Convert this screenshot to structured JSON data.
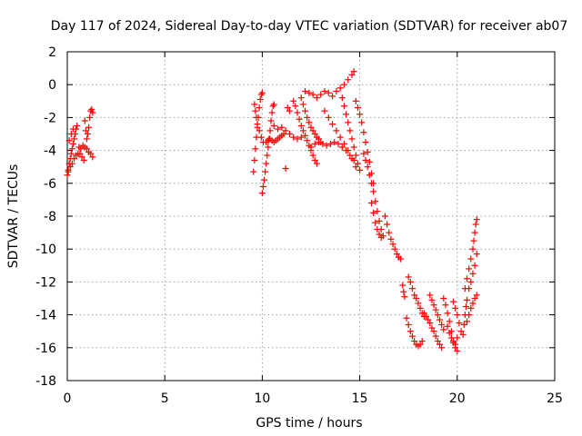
{
  "chart_data": {
    "type": "scatter",
    "title": "Day 117 of 2024, Sidereal Day-to-day VTEC variation (SDTVAR) for receiver ab07",
    "xlabel": "GPS time / hours",
    "ylabel": "SDTVAR / TECUs",
    "xlim": [
      0,
      25
    ],
    "ylim": [
      -18,
      2
    ],
    "xticks": [
      0,
      5,
      10,
      15,
      20,
      25
    ],
    "yticks": [
      2,
      0,
      -2,
      -4,
      -6,
      -8,
      -10,
      -12,
      -14,
      -16,
      -18
    ],
    "grid": true,
    "marker": "+",
    "color": "#ff0000",
    "series": [
      {
        "values": [
          [
            0.0,
            -5.5
          ],
          [
            0.05,
            -5.2
          ],
          [
            0.1,
            -4.8
          ],
          [
            0.15,
            -4.5
          ],
          [
            0.2,
            -4.2
          ],
          [
            0.25,
            -3.9
          ],
          [
            0.3,
            -3.6
          ],
          [
            0.35,
            -3.3
          ],
          [
            0.4,
            -3.0
          ],
          [
            0.45,
            -2.7
          ],
          [
            0.5,
            -2.5
          ],
          [
            0.05,
            -5.3
          ],
          [
            0.15,
            -5.0
          ],
          [
            0.25,
            -4.8
          ],
          [
            0.35,
            -4.5
          ],
          [
            0.45,
            -4.3
          ],
          [
            0.55,
            -4.2
          ],
          [
            0.65,
            -4.2
          ],
          [
            0.75,
            -4.4
          ],
          [
            0.85,
            -4.6
          ],
          [
            0.6,
            -3.8
          ],
          [
            0.7,
            -3.9
          ],
          [
            0.8,
            -3.7
          ],
          [
            0.9,
            -3.8
          ],
          [
            1.0,
            -3.9
          ],
          [
            1.1,
            -4.1
          ],
          [
            1.2,
            -4.2
          ],
          [
            1.3,
            -4.4
          ],
          [
            0.9,
            -2.2
          ],
          [
            0.95,
            -2.8
          ],
          [
            1.0,
            -3.3
          ],
          [
            1.05,
            -3.0
          ],
          [
            1.1,
            -2.6
          ],
          [
            1.15,
            -2.0
          ],
          [
            1.2,
            -1.6
          ],
          [
            1.25,
            -1.5
          ],
          [
            1.3,
            -1.7
          ],
          [
            0.1,
            -3.4
          ],
          [
            0.2,
            -3.0
          ],
          [
            0.3,
            -2.7
          ],
          [
            9.55,
            -5.3
          ],
          [
            9.6,
            -4.6
          ],
          [
            9.65,
            -3.9
          ],
          [
            9.7,
            -3.2
          ],
          [
            9.75,
            -2.6
          ],
          [
            9.8,
            -2.0
          ],
          [
            9.85,
            -1.4
          ],
          [
            9.9,
            -0.9
          ],
          [
            9.95,
            -0.6
          ],
          [
            10.0,
            -0.5
          ],
          [
            9.6,
            -1.2
          ],
          [
            9.65,
            -1.6
          ],
          [
            9.7,
            -2.0
          ],
          [
            9.75,
            -2.4
          ],
          [
            9.85,
            -2.8
          ],
          [
            9.95,
            -3.2
          ],
          [
            10.05,
            -3.5
          ],
          [
            10.0,
            -6.6
          ],
          [
            10.05,
            -6.2
          ],
          [
            10.1,
            -5.8
          ],
          [
            10.15,
            -5.3
          ],
          [
            10.2,
            -4.8
          ],
          [
            10.25,
            -4.3
          ],
          [
            10.3,
            -3.8
          ],
          [
            10.35,
            -3.3
          ],
          [
            10.4,
            -2.8
          ],
          [
            10.45,
            -2.2
          ],
          [
            10.5,
            -1.7
          ],
          [
            10.55,
            -1.3
          ],
          [
            10.6,
            -1.2
          ],
          [
            10.2,
            -3.5
          ],
          [
            10.3,
            -3.4
          ],
          [
            10.4,
            -3.3
          ],
          [
            10.5,
            -3.4
          ],
          [
            10.6,
            -3.5
          ],
          [
            10.7,
            -3.4
          ],
          [
            10.8,
            -3.3
          ],
          [
            10.9,
            -3.2
          ],
          [
            11.0,
            -3.1
          ],
          [
            11.1,
            -3.0
          ],
          [
            10.6,
            -2.5
          ],
          [
            10.8,
            -2.7
          ],
          [
            11.0,
            -2.6
          ],
          [
            11.2,
            -2.8
          ],
          [
            11.4,
            -3.0
          ],
          [
            11.6,
            -3.2
          ],
          [
            11.8,
            -3.3
          ],
          [
            12.0,
            -3.2
          ],
          [
            11.2,
            -5.1
          ],
          [
            11.3,
            -1.4
          ],
          [
            11.4,
            -1.6
          ],
          [
            11.6,
            -1.0
          ],
          [
            11.7,
            -1.3
          ],
          [
            11.8,
            -1.7
          ],
          [
            11.9,
            -2.1
          ],
          [
            12.0,
            -2.5
          ],
          [
            12.1,
            -2.8
          ],
          [
            12.2,
            -3.1
          ],
          [
            12.3,
            -3.4
          ],
          [
            12.4,
            -3.7
          ],
          [
            12.5,
            -4.0
          ],
          [
            12.6,
            -4.3
          ],
          [
            12.7,
            -4.6
          ],
          [
            12.8,
            -4.8
          ],
          [
            12.0,
            -0.8
          ],
          [
            12.1,
            -1.2
          ],
          [
            12.2,
            -1.6
          ],
          [
            12.3,
            -2.0
          ],
          [
            12.4,
            -2.3
          ],
          [
            12.5,
            -2.6
          ],
          [
            12.6,
            -2.8
          ],
          [
            12.7,
            -3.0
          ],
          [
            12.8,
            -3.2
          ],
          [
            12.9,
            -3.3
          ],
          [
            13.0,
            -3.5
          ],
          [
            12.2,
            -0.4
          ],
          [
            12.4,
            -0.5
          ],
          [
            12.6,
            -0.6
          ],
          [
            12.8,
            -0.8
          ],
          [
            13.0,
            -0.6
          ],
          [
            13.2,
            -0.4
          ],
          [
            13.4,
            -0.5
          ],
          [
            13.6,
            -0.7
          ],
          [
            13.8,
            -0.4
          ],
          [
            14.0,
            -0.2
          ],
          [
            14.2,
            0.0
          ],
          [
            14.4,
            0.3
          ],
          [
            14.6,
            0.6
          ],
          [
            14.7,
            0.8
          ],
          [
            12.5,
            -3.8
          ],
          [
            12.7,
            -3.6
          ],
          [
            12.9,
            -3.5
          ],
          [
            13.1,
            -3.6
          ],
          [
            13.3,
            -3.7
          ],
          [
            13.5,
            -3.6
          ],
          [
            13.7,
            -3.5
          ],
          [
            13.9,
            -3.6
          ],
          [
            14.1,
            -3.8
          ],
          [
            14.3,
            -4.0
          ],
          [
            14.5,
            -4.3
          ],
          [
            14.7,
            -4.6
          ],
          [
            13.2,
            -1.6
          ],
          [
            13.4,
            -2.0
          ],
          [
            13.6,
            -2.4
          ],
          [
            13.8,
            -2.8
          ],
          [
            14.0,
            -3.2
          ],
          [
            14.2,
            -3.6
          ],
          [
            14.4,
            -4.0
          ],
          [
            14.6,
            -4.5
          ],
          [
            14.8,
            -5.0
          ],
          [
            14.1,
            -0.8
          ],
          [
            14.2,
            -1.3
          ],
          [
            14.3,
            -1.8
          ],
          [
            14.4,
            -2.3
          ],
          [
            14.5,
            -2.8
          ],
          [
            14.6,
            -3.3
          ],
          [
            14.7,
            -3.8
          ],
          [
            14.8,
            -4.3
          ],
          [
            14.9,
            -4.8
          ],
          [
            15.0,
            -5.2
          ],
          [
            14.8,
            -1.0
          ],
          [
            14.9,
            -1.4
          ],
          [
            15.0,
            -1.8
          ],
          [
            15.1,
            -2.3
          ],
          [
            15.2,
            -2.9
          ],
          [
            15.3,
            -3.5
          ],
          [
            15.4,
            -4.1
          ],
          [
            15.5,
            -4.7
          ],
          [
            15.6,
            -5.4
          ],
          [
            15.7,
            -6.0
          ],
          [
            15.2,
            -4.2
          ],
          [
            15.3,
            -4.6
          ],
          [
            15.4,
            -5.0
          ],
          [
            15.5,
            -5.5
          ],
          [
            15.6,
            -6.0
          ],
          [
            15.7,
            -6.5
          ],
          [
            15.8,
            -7.1
          ],
          [
            15.9,
            -7.7
          ],
          [
            16.0,
            -8.3
          ],
          [
            16.1,
            -8.8
          ],
          [
            16.2,
            -9.2
          ],
          [
            15.6,
            -7.2
          ],
          [
            15.7,
            -7.8
          ],
          [
            15.8,
            -8.4
          ],
          [
            15.9,
            -8.8
          ],
          [
            16.0,
            -9.1
          ],
          [
            16.1,
            -9.3
          ],
          [
            16.3,
            -8.0
          ],
          [
            16.4,
            -8.5
          ],
          [
            16.5,
            -9.0
          ],
          [
            16.6,
            -9.4
          ],
          [
            16.7,
            -9.7
          ],
          [
            16.8,
            -10.0
          ],
          [
            16.9,
            -10.3
          ],
          [
            17.0,
            -10.5
          ],
          [
            17.1,
            -10.6
          ],
          [
            17.2,
            -12.2
          ],
          [
            17.25,
            -12.6
          ],
          [
            17.3,
            -12.9
          ],
          [
            17.5,
            -11.7
          ],
          [
            17.6,
            -12.0
          ],
          [
            17.7,
            -12.4
          ],
          [
            17.8,
            -12.8
          ],
          [
            17.9,
            -13.0
          ],
          [
            18.0,
            -13.3
          ],
          [
            18.1,
            -13.6
          ],
          [
            18.2,
            -13.9
          ],
          [
            18.3,
            -14.1
          ],
          [
            17.4,
            -14.2
          ],
          [
            17.5,
            -14.6
          ],
          [
            17.6,
            -15.0
          ],
          [
            17.7,
            -15.3
          ],
          [
            17.8,
            -15.6
          ],
          [
            17.9,
            -15.8
          ],
          [
            18.0,
            -15.9
          ],
          [
            18.1,
            -15.8
          ],
          [
            18.2,
            -15.6
          ],
          [
            18.3,
            -13.9
          ],
          [
            18.4,
            -14.1
          ],
          [
            18.5,
            -14.3
          ],
          [
            18.6,
            -14.5
          ],
          [
            18.7,
            -14.8
          ],
          [
            18.8,
            -15.0
          ],
          [
            18.9,
            -15.3
          ],
          [
            19.0,
            -15.6
          ],
          [
            19.1,
            -15.8
          ],
          [
            19.2,
            -16.0
          ],
          [
            18.6,
            -12.8
          ],
          [
            18.7,
            -13.1
          ],
          [
            18.8,
            -13.4
          ],
          [
            18.9,
            -13.7
          ],
          [
            19.0,
            -14.0
          ],
          [
            19.1,
            -14.3
          ],
          [
            19.2,
            -14.6
          ],
          [
            19.3,
            -14.9
          ],
          [
            19.3,
            -13.0
          ],
          [
            19.4,
            -13.4
          ],
          [
            19.5,
            -13.9
          ],
          [
            19.6,
            -14.4
          ],
          [
            19.7,
            -15.0
          ],
          [
            19.8,
            -15.6
          ],
          [
            19.9,
            -16.0
          ],
          [
            20.0,
            -16.2
          ],
          [
            19.5,
            -14.7
          ],
          [
            19.6,
            -15.1
          ],
          [
            19.7,
            -15.4
          ],
          [
            19.8,
            -15.7
          ],
          [
            19.9,
            -15.8
          ],
          [
            20.0,
            -15.4
          ],
          [
            19.8,
            -13.2
          ],
          [
            19.9,
            -13.6
          ],
          [
            20.0,
            -14.0
          ],
          [
            20.1,
            -14.5
          ],
          [
            20.2,
            -15.0
          ],
          [
            20.3,
            -15.2
          ],
          [
            20.35,
            -14.6
          ],
          [
            20.4,
            -14.0
          ],
          [
            20.45,
            -13.5
          ],
          [
            20.5,
            -13.1
          ],
          [
            20.4,
            -12.4
          ],
          [
            20.5,
            -11.8
          ],
          [
            20.6,
            -11.2
          ],
          [
            20.7,
            -10.6
          ],
          [
            20.8,
            -10.0
          ],
          [
            20.85,
            -9.5
          ],
          [
            20.9,
            -9.0
          ],
          [
            20.95,
            -8.5
          ],
          [
            21.0,
            -8.2
          ],
          [
            20.5,
            -14.4
          ],
          [
            20.6,
            -14.0
          ],
          [
            20.7,
            -13.6
          ],
          [
            20.8,
            -13.3
          ],
          [
            20.9,
            -13.0
          ],
          [
            21.0,
            -12.8
          ],
          [
            20.6,
            -12.4
          ],
          [
            20.7,
            -12.0
          ],
          [
            20.8,
            -11.5
          ],
          [
            20.9,
            -11.0
          ],
          [
            21.0,
            -10.3
          ]
        ]
      }
    ]
  }
}
